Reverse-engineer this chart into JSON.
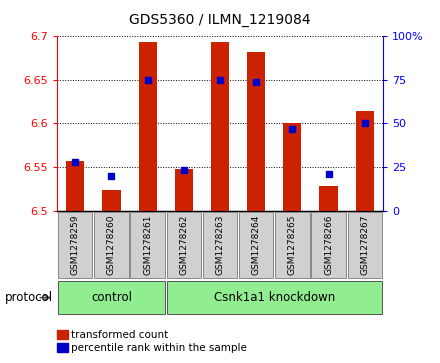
{
  "title": "GDS5360 / ILMN_1219084",
  "samples": [
    "GSM1278259",
    "GSM1278260",
    "GSM1278261",
    "GSM1278262",
    "GSM1278263",
    "GSM1278264",
    "GSM1278265",
    "GSM1278266",
    "GSM1278267"
  ],
  "transformed_counts": [
    6.557,
    6.524,
    6.693,
    6.548,
    6.693,
    6.682,
    6.601,
    6.528,
    6.614
  ],
  "percentile_ranks": [
    28,
    20,
    75,
    23,
    75,
    74,
    47,
    21,
    50
  ],
  "ylim_left": [
    6.5,
    6.7
  ],
  "ylim_right": [
    0,
    100
  ],
  "yticks_left": [
    6.5,
    6.55,
    6.6,
    6.65,
    6.7
  ],
  "yticks_right": [
    0,
    25,
    50,
    75,
    100
  ],
  "bar_color": "#cc2200",
  "dot_color": "#0000cc",
  "control_count": 3,
  "knockdown_count": 6,
  "control_label": "control",
  "knockdown_label": "Csnk1a1 knockdown",
  "green_color": "#90ee90",
  "gray_color": "#d0d0d0",
  "legend_bar_label": "transformed count",
  "legend_dot_label": "percentile rank within the sample",
  "protocol_label": "protocol"
}
